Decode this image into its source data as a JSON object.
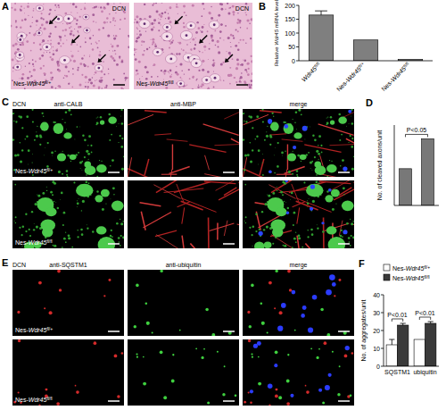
{
  "panels": {
    "A": {
      "label": "A",
      "images": [
        {
          "region": "DCN",
          "genotype": "Nes-Wdr45fl/+"
        },
        {
          "region": "DCN",
          "genotype": "Nes-Wdr45fl/fl"
        }
      ]
    },
    "C": {
      "label": "C",
      "region": "DCN",
      "columns": [
        "anti-CALB",
        "anti-MBP",
        "merge"
      ],
      "rows": [
        "Nes-Wdr45fl/+",
        "Nes-Wdr45fl/fl"
      ]
    },
    "E": {
      "label": "E",
      "region": "DCN",
      "columns": [
        "anti-SQSTM1",
        "anti-ubiquitin",
        "merge"
      ],
      "rows": [
        "Nes-Wdr45fl/+",
        "Nes-Wdr45fl/fl"
      ]
    }
  },
  "chart_data": [
    {
      "label": "B",
      "type": "bar",
      "ylabel": "Relative Wdr45 mRNA level",
      "categories": [
        "Wdr45fl/fl",
        "Nes-Wdr45fl/+",
        "Nes-Wdr45fl/fl"
      ],
      "values": [
        165,
        75,
        5
      ],
      "errors": [
        15,
        null,
        null
      ],
      "color": "#7f7f7f",
      "ylim": [
        0,
        200
      ],
      "yticks": [
        0,
        50,
        100,
        150,
        200
      ]
    },
    {
      "label": "D",
      "type": "bar",
      "ylabel": "No. of cleaved axons/unit",
      "categories": [
        "Nes-Wdr45fl/+",
        "Nes-Wdr45fl/fl"
      ],
      "values": [
        16,
        29
      ],
      "color": "#787878",
      "ylim": [
        0,
        35
      ],
      "tick_labels": false,
      "annotations": [
        "P<0.05"
      ]
    },
    {
      "label": "F",
      "type": "bar",
      "ylabel": "No. of aggregates/unit",
      "categories": [
        "SQSTM1",
        "ubiquitin"
      ],
      "series": [
        {
          "name": "Nes-Wdr45fl/+",
          "color": "#ffffff",
          "values": [
            12,
            15
          ],
          "errors": [
            3,
            null
          ]
        },
        {
          "name": "Nes-Wdr45fl/fl",
          "color": "#3a3a3a",
          "values": [
            23,
            24
          ],
          "errors": [
            1,
            1
          ]
        }
      ],
      "ylim": [
        0,
        40
      ],
      "yticks": [
        0,
        10,
        20,
        30,
        40
      ],
      "legend": "top",
      "annotations": [
        "P<0.01",
        "P<0.01"
      ]
    }
  ]
}
